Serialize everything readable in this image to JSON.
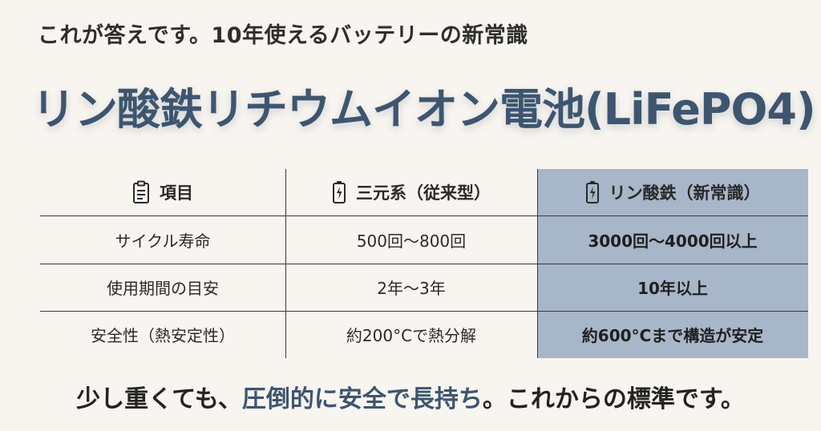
{
  "header": {
    "subtitle": "これが答えです。10年使えるバッテリーの新常識",
    "title": "リン酸鉄リチウムイオン電池(LiFePO4)"
  },
  "table": {
    "columns": [
      {
        "label": "項目",
        "icon": "clipboard-icon"
      },
      {
        "label": "三元系（従来型）",
        "icon": "battery-charging-icon"
      },
      {
        "label": "リン酸鉄（新常識）",
        "icon": "battery-charging-icon"
      }
    ],
    "rows": [
      {
        "item": "サイクル寿命",
        "conventional": "500回～800回",
        "lifepo4": "3000回～4000回以上"
      },
      {
        "item": "使用期間の目安",
        "conventional": "2年～3年",
        "lifepo4": "10年以上"
      },
      {
        "item": "安全性（熱安定性）",
        "conventional": "約200°Cで熱分解",
        "lifepo4": "約600°Cまで構造が安定"
      }
    ]
  },
  "footer": {
    "part1": "少し重くても、",
    "highlight": "圧倒的に安全で長持ち",
    "part2": "。これからの標準です。"
  },
  "colors": {
    "background": "#f8f5f0",
    "accent": "#3e5570",
    "highlight_column": "#a8b6c9"
  }
}
